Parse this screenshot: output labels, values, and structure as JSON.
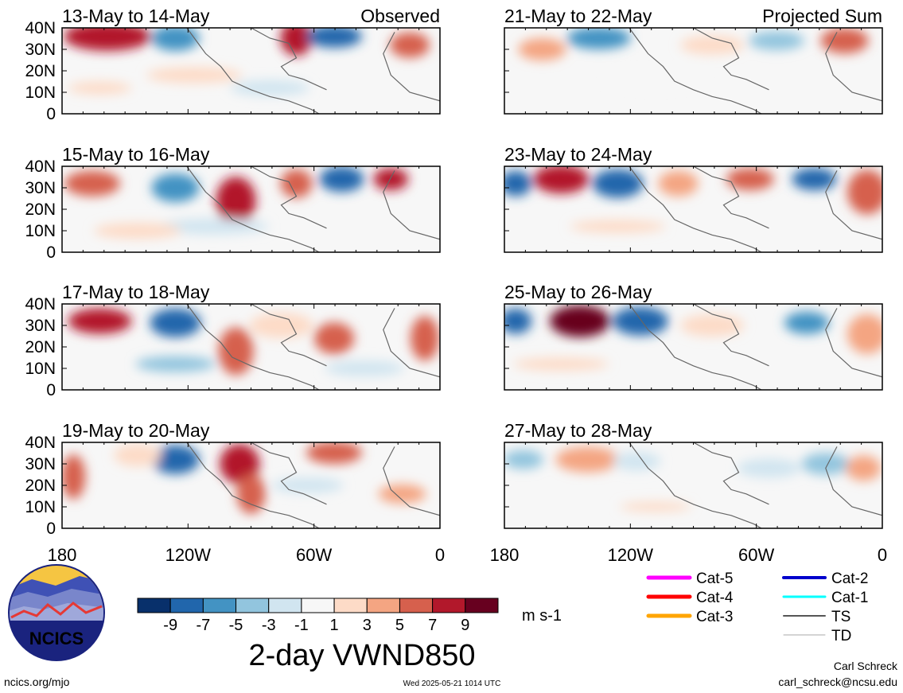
{
  "panels": [
    {
      "title": "13-May to 14-May",
      "tag": "Observed",
      "column": "left",
      "row": 0
    },
    {
      "title": "15-May to 16-May",
      "tag": "",
      "column": "left",
      "row": 1
    },
    {
      "title": "17-May to 18-May",
      "tag": "",
      "column": "left",
      "row": 2
    },
    {
      "title": "19-May to 20-May",
      "tag": "",
      "column": "left",
      "row": 3
    },
    {
      "title": "21-May to 22-May",
      "tag": "Projected Sum",
      "column": "right",
      "row": 0
    },
    {
      "title": "23-May to 24-May",
      "tag": "",
      "column": "right",
      "row": 1
    },
    {
      "title": "25-May to 26-May",
      "tag": "",
      "column": "right",
      "row": 2
    },
    {
      "title": "27-May to 28-May",
      "tag": "",
      "column": "right",
      "row": 3
    }
  ],
  "lat_ticks": [
    "40N",
    "30N",
    "20N",
    "10N",
    "0"
  ],
  "lon_ticks": [
    "180",
    "120W",
    "60W",
    "0"
  ],
  "colorbar": {
    "labels": [
      "-9",
      "-7",
      "-5",
      "-3",
      "-1",
      "1",
      "3",
      "5",
      "7",
      "9"
    ],
    "colors": [
      "#08306b",
      "#2166ac",
      "#4393c3",
      "#92c5de",
      "#d1e5f0",
      "#f7f7f7",
      "#fddbc7",
      "#f4a582",
      "#d6604d",
      "#b2182b",
      "#67001f"
    ],
    "unit": "m s-1",
    "title": "2-day VWND850"
  },
  "legend": [
    {
      "label": "Cat-5",
      "color": "#ff00ff",
      "weight": 5
    },
    {
      "label": "Cat-4",
      "color": "#ff0000",
      "weight": 5
    },
    {
      "label": "Cat-3",
      "color": "#ffa500",
      "weight": 5
    },
    {
      "label": "Cat-2",
      "color": "#0000cc",
      "weight": 4
    },
    {
      "label": "Cat-1",
      "color": "#00ffff",
      "weight": 3
    },
    {
      "label": "TS",
      "color": "#555555",
      "weight": 2
    },
    {
      "label": "TD",
      "color": "#aaaaaa",
      "weight": 1
    }
  ],
  "footer": {
    "logo_text": "NCICS",
    "site": "ncics.org/mjo",
    "timestamp": "Wed 2025-05-21 1014 UTC",
    "author": "Carl Schreck",
    "email": "carl_schreck@ncsu.edu"
  }
}
